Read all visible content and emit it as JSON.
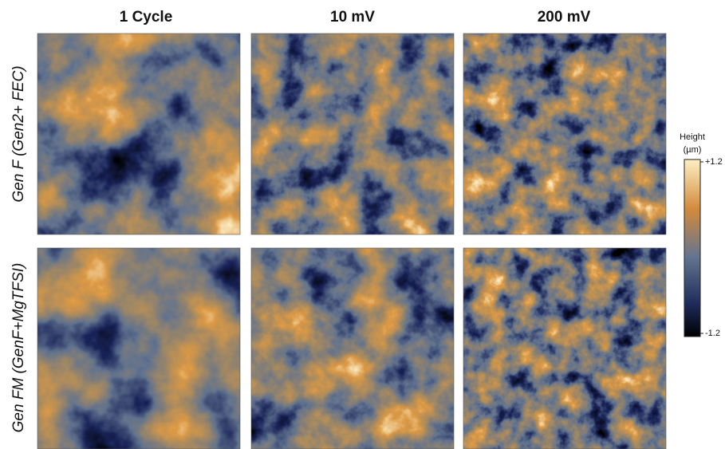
{
  "figure": {
    "columns": [
      "1 Cycle",
      "10 mV",
      "200 mV"
    ],
    "rows": [
      "Gen F (Gen2+ FEC)",
      "Gen FM (GenF+MgTFSI)"
    ],
    "colorbar": {
      "title": [
        "Height",
        "(µm)"
      ],
      "lim": [
        -1.2,
        1.2
      ],
      "ticks": [
        {
          "value": 1.2,
          "label": "+1.2"
        },
        {
          "value": -1.2,
          "label": "-1.2"
        }
      ]
    }
  }
}
